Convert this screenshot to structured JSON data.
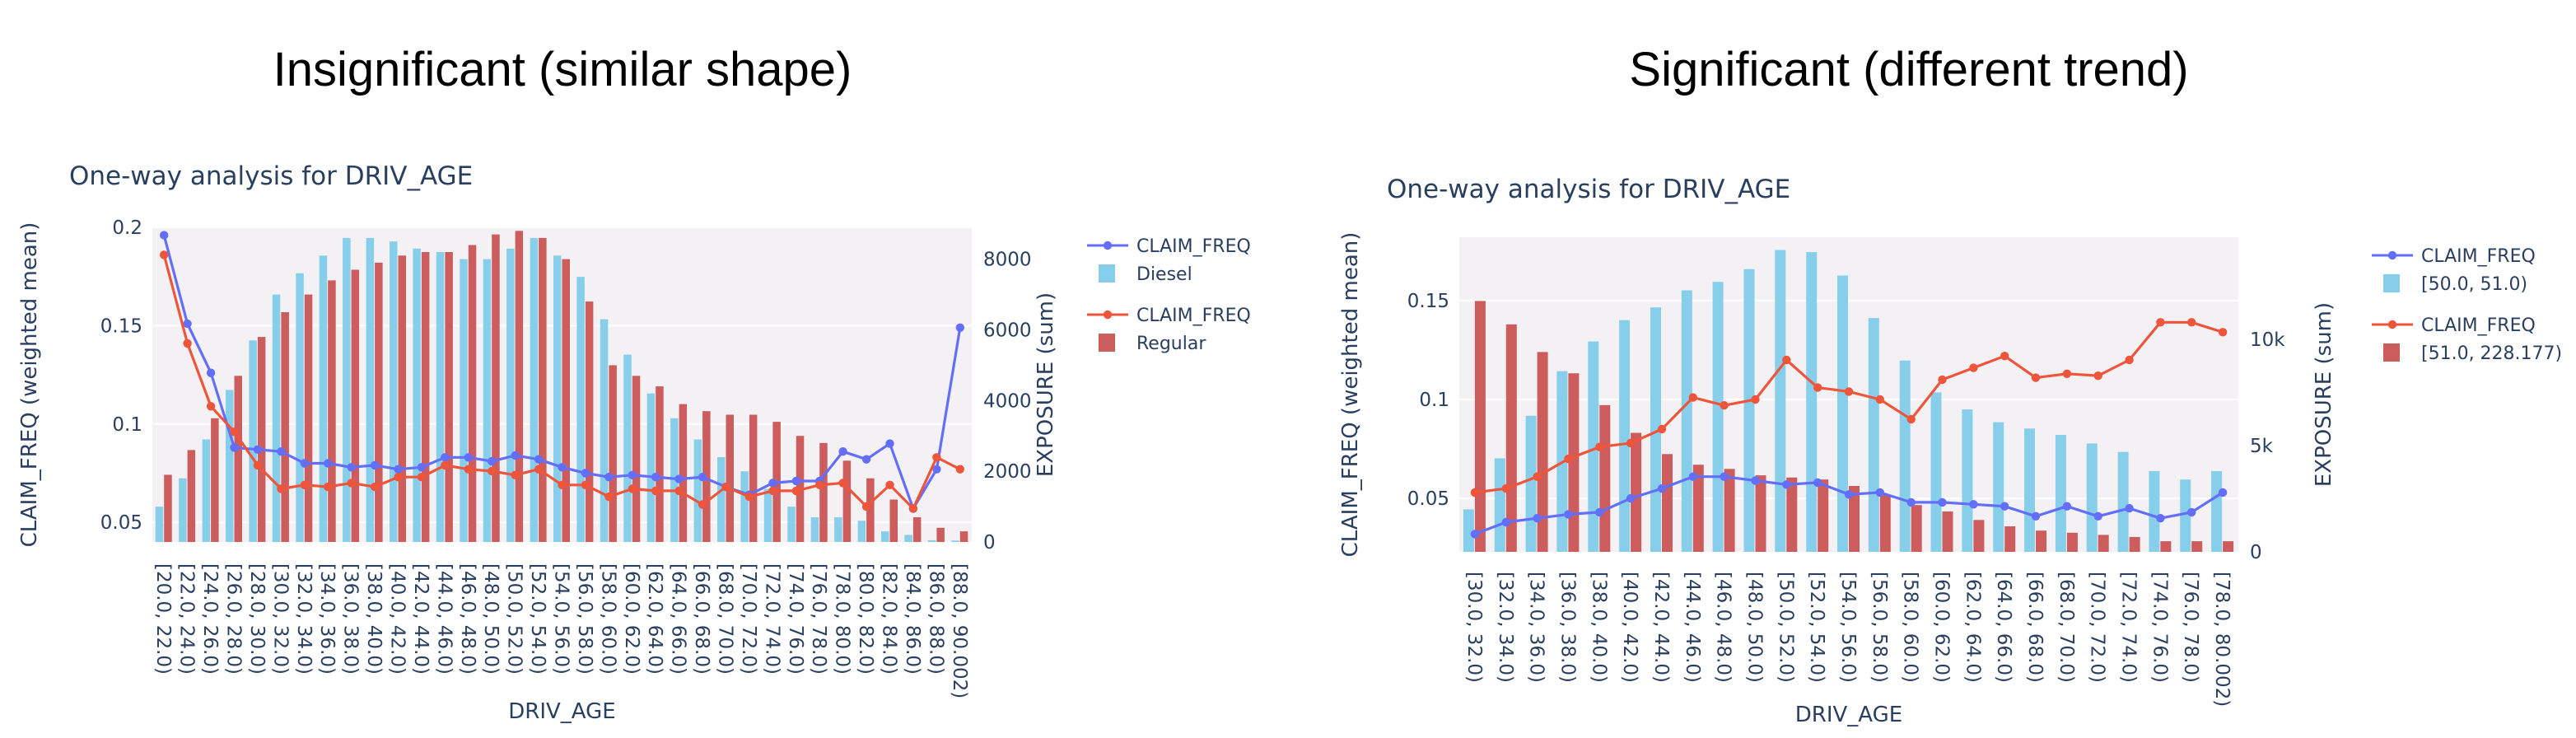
{
  "figure": {
    "left_title": "Insignificant (similar shape)",
    "right_title": "Significant (different trend)"
  },
  "colors": {
    "plot_bg": "#f4f1f5",
    "axis_text": "#2a3f5f",
    "freq_line_1": "#636efa",
    "freq_line_2": "#ef553b",
    "bar_1": "#87ceeb",
    "bar_2": "#cd5c5c"
  },
  "chart_data": [
    {
      "type": "bar",
      "title": "One-way analysis for DRIV_AGE",
      "xlabel": "DRIV_AGE",
      "ylabel": "CLAIM_FREQ (weighted mean)",
      "y2label": "EXPOSURE (sum)",
      "ylim": [
        0.04,
        0.2
      ],
      "y2lim": [
        0,
        8900
      ],
      "yticks": [
        0.05,
        0.1,
        0.15,
        0.2
      ],
      "yticklabels": [
        "0.05",
        "0.1",
        "0.15",
        "0.2"
      ],
      "y2ticks": [
        0,
        2000,
        4000,
        6000,
        8000
      ],
      "y2ticklabels": [
        "0",
        "2000",
        "4000",
        "6000",
        "8000"
      ],
      "legend_position": "right",
      "categories": [
        "[20.0, 22.0)",
        "[22.0, 24.0)",
        "[24.0, 26.0)",
        "[26.0, 28.0)",
        "[28.0, 30.0)",
        "[30.0, 32.0)",
        "[32.0, 34.0)",
        "[34.0, 36.0)",
        "[36.0, 38.0)",
        "[38.0, 40.0)",
        "[40.0, 42.0)",
        "[42.0, 44.0)",
        "[44.0, 46.0)",
        "[46.0, 48.0)",
        "[48.0, 50.0)",
        "[50.0, 52.0)",
        "[52.0, 54.0)",
        "[54.0, 56.0)",
        "[56.0, 58.0)",
        "[58.0, 60.0)",
        "[60.0, 62.0)",
        "[62.0, 64.0)",
        "[64.0, 66.0)",
        "[66.0, 68.0)",
        "[68.0, 70.0)",
        "[70.0, 72.0)",
        "[72.0, 74.0)",
        "[74.0, 76.0)",
        "[76.0, 78.0)",
        "[78.0, 80.0)",
        "[80.0, 82.0)",
        "[82.0, 84.0)",
        "[84.0, 86.0)",
        "[86.0, 88.0)",
        "[88.0, 90.002)"
      ],
      "series": [
        {
          "name": "CLAIM_FREQ",
          "group": "Diesel",
          "kind": "line",
          "axis": "y",
          "color_key": "freq_line_1",
          "values": [
            0.196,
            0.151,
            0.126,
            0.088,
            0.087,
            0.086,
            0.08,
            0.08,
            0.078,
            0.079,
            0.077,
            0.078,
            0.083,
            0.083,
            0.081,
            0.084,
            0.082,
            0.078,
            0.075,
            0.073,
            0.074,
            0.073,
            0.072,
            0.073,
            0.068,
            0.064,
            0.07,
            0.071,
            0.071,
            0.086,
            0.082,
            0.09,
            0.057,
            0.077,
            0.149
          ]
        },
        {
          "name": "Diesel",
          "group": "Diesel",
          "kind": "bar",
          "axis": "y2",
          "color_key": "bar_1",
          "values": [
            1000,
            1800,
            2900,
            4300,
            5700,
            7000,
            7600,
            8100,
            8600,
            8600,
            8500,
            8300,
            8200,
            8000,
            8000,
            8300,
            8600,
            8100,
            7500,
            6300,
            5300,
            4200,
            3500,
            2900,
            2400,
            2000,
            1500,
            1000,
            700,
            700,
            600,
            300,
            200,
            50,
            40
          ]
        },
        {
          "name": "CLAIM_FREQ",
          "group": "Regular",
          "kind": "line",
          "axis": "y",
          "color_key": "freq_line_2",
          "values": [
            0.186,
            0.141,
            0.109,
            0.096,
            0.079,
            0.067,
            0.069,
            0.068,
            0.07,
            0.068,
            0.073,
            0.073,
            0.079,
            0.077,
            0.076,
            0.074,
            0.077,
            0.069,
            0.069,
            0.063,
            0.067,
            0.066,
            0.066,
            0.059,
            0.068,
            0.063,
            0.066,
            0.066,
            0.069,
            0.07,
            0.058,
            0.069,
            0.057,
            0.083,
            0.077
          ]
        },
        {
          "name": "Regular",
          "group": "Regular",
          "kind": "bar",
          "axis": "y2",
          "color_key": "bar_2",
          "values": [
            1900,
            2600,
            3500,
            4700,
            5800,
            6500,
            7000,
            7400,
            7700,
            7900,
            8100,
            8200,
            8200,
            8400,
            8700,
            8800,
            8600,
            8000,
            6800,
            5000,
            4700,
            4400,
            3900,
            3700,
            3600,
            3600,
            3400,
            3000,
            2800,
            2300,
            1800,
            1200,
            700,
            400,
            300
          ]
        }
      ]
    },
    {
      "type": "bar",
      "title": "One-way analysis for DRIV_AGE",
      "xlabel": "DRIV_AGE",
      "ylabel": "CLAIM_FREQ (weighted mean)",
      "y2label": "EXPOSURE (sum)",
      "ylim": [
        0.023,
        0.182
      ],
      "y2lim": [
        0,
        14800
      ],
      "yticks": [
        0.05,
        0.1,
        0.15
      ],
      "yticklabels": [
        "0.05",
        "0.1",
        "0.15"
      ],
      "y2ticks": [
        0,
        5000,
        10000
      ],
      "y2ticklabels": [
        "0",
        "5k",
        "10k"
      ],
      "legend_position": "right",
      "categories": [
        "[30.0, 32.0)",
        "[32.0, 34.0)",
        "[34.0, 36.0)",
        "[36.0, 38.0)",
        "[38.0, 40.0)",
        "[40.0, 42.0)",
        "[42.0, 44.0)",
        "[44.0, 46.0)",
        "[46.0, 48.0)",
        "[48.0, 50.0)",
        "[50.0, 52.0)",
        "[52.0, 54.0)",
        "[54.0, 56.0)",
        "[56.0, 58.0)",
        "[58.0, 60.0)",
        "[60.0, 62.0)",
        "[62.0, 64.0)",
        "[64.0, 66.0)",
        "[66.0, 68.0)",
        "[68.0, 70.0)",
        "[70.0, 72.0)",
        "[72.0, 74.0)",
        "[74.0, 76.0)",
        "[76.0, 78.0)",
        "[78.0, 80.002)"
      ],
      "series": [
        {
          "name": "CLAIM_FREQ",
          "group": "[50.0, 51.0)",
          "kind": "line",
          "axis": "y",
          "color_key": "freq_line_1",
          "values": [
            0.032,
            0.038,
            0.04,
            0.042,
            0.043,
            0.05,
            0.055,
            0.061,
            0.061,
            0.059,
            0.057,
            0.058,
            0.052,
            0.053,
            0.048,
            0.048,
            0.047,
            0.046,
            0.041,
            0.046,
            0.041,
            0.045,
            0.04,
            0.043,
            0.053
          ]
        },
        {
          "name": "[50.0, 51.0)",
          "group": "[50.0, 51.0)",
          "kind": "bar",
          "axis": "y2",
          "color_key": "bar_1",
          "values": [
            2000,
            4400,
            6400,
            8500,
            9900,
            10900,
            11500,
            12300,
            12700,
            13300,
            14200,
            14100,
            13000,
            11000,
            9000,
            7500,
            6700,
            6100,
            5800,
            5500,
            5100,
            4700,
            3800,
            3400,
            3800
          ]
        },
        {
          "name": "CLAIM_FREQ",
          "group": "[51.0, 228.177)",
          "kind": "line",
          "axis": "y",
          "color_key": "freq_line_2",
          "values": [
            0.053,
            0.055,
            0.061,
            0.07,
            0.076,
            0.078,
            0.085,
            0.101,
            0.097,
            0.1,
            0.12,
            0.106,
            0.104,
            0.1,
            0.09,
            0.11,
            0.116,
            0.122,
            0.111,
            0.113,
            0.112,
            0.12,
            0.139,
            0.139,
            0.134
          ]
        },
        {
          "name": "[51.0, 228.177)",
          "group": "[51.0, 228.177)",
          "kind": "bar",
          "axis": "y2",
          "color_key": "bar_2",
          "values": [
            11800,
            10700,
            9400,
            8400,
            6900,
            5600,
            4600,
            4100,
            3900,
            3600,
            3500,
            3400,
            3100,
            2700,
            2200,
            1900,
            1500,
            1200,
            1000,
            900,
            800,
            700,
            500,
            500,
            500
          ]
        }
      ]
    }
  ]
}
